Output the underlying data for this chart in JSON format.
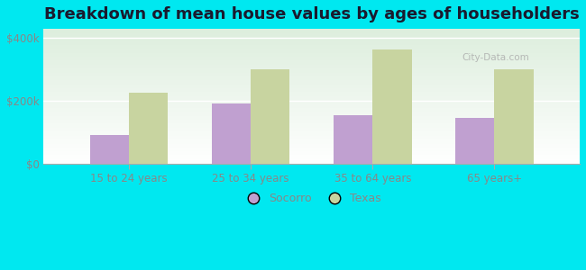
{
  "title": "Breakdown of mean house values by ages of householders",
  "categories": [
    "15 to 24 years",
    "25 to 34 years",
    "35 to 64 years",
    "65 years+"
  ],
  "socorro_values": [
    90000,
    190000,
    155000,
    145000
  ],
  "texas_values": [
    225000,
    300000,
    365000,
    300000
  ],
  "socorro_color": "#c0a0d0",
  "texas_color": "#c8d4a0",
  "background_color": "#00e8f0",
  "yticks": [
    0,
    200000,
    400000
  ],
  "ytick_labels": [
    "$0",
    "$200k",
    "$400k"
  ],
  "tick_color": "#888888",
  "title_fontsize": 13,
  "legend_labels": [
    "Socorro",
    "Texas"
  ],
  "bar_width": 0.32,
  "ylim": [
    0,
    430000
  ],
  "watermark": "City-Data.com"
}
